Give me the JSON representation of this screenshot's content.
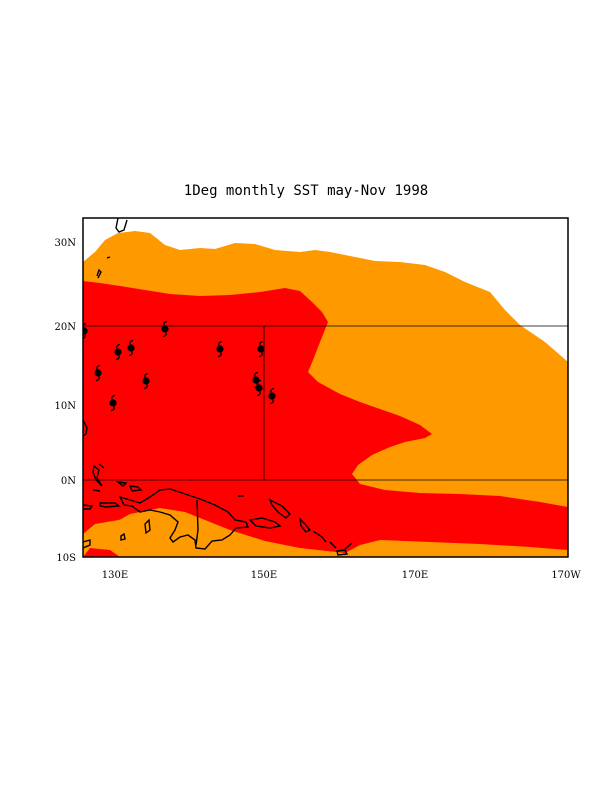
{
  "title": "1Deg monthly SST may-Nov 1998",
  "colors": {
    "warm": "#ff0000",
    "mid": "#ff9900",
    "background": "#ffffff",
    "line": "#000000"
  },
  "axes": {
    "lat_labels": [
      "30N",
      "20N",
      "10N",
      "0N",
      "10S"
    ],
    "lon_labels": [
      "130E",
      "150E",
      "170E",
      "170W"
    ]
  },
  "storm_symbol": "typhoon-symbol-icon",
  "storm_count": 12
}
